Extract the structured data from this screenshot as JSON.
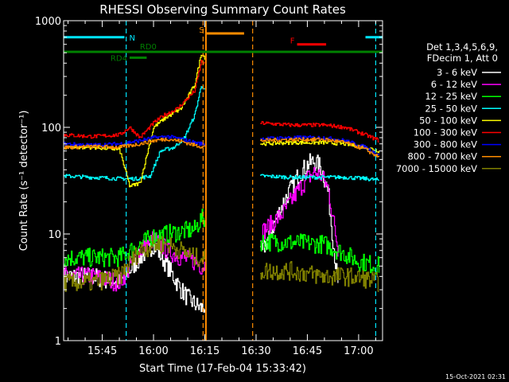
{
  "chart_data": {
    "type": "line",
    "title": "RHESSI Observing Summary Count Rates",
    "xlabel": "Start Time (17-Feb-04 15:33:42)",
    "ylabel": "Count Rate (s⁻¹ detector⁻¹)",
    "y_scale": "log",
    "ylim": [
      1,
      1000
    ],
    "xlim": [
      "15:33:42",
      "17:07:00"
    ],
    "x_ticks": [
      "15:45",
      "16:00",
      "16:15",
      "16:30",
      "16:45",
      "17:00"
    ],
    "y_ticks": [
      "1",
      "10",
      "100",
      "1000"
    ],
    "legend_header": [
      "Det 1,3,4,5,6,9,",
      "FDecim 1, Att 0"
    ],
    "legend_position": "right",
    "footer": "15-Oct-2021 02:31",
    "flags": [
      {
        "label": "N",
        "color": "#00e5ff",
        "y": 700,
        "segments": [
          [
            "15:33:42",
            "15:51:30"
          ],
          [
            "17:02:00",
            "17:07:00"
          ]
        ]
      },
      {
        "label": "S",
        "color": "#ff8c00",
        "y": 760,
        "segments": [
          [
            "16:15:30",
            "16:26:30"
          ]
        ]
      },
      {
        "label": "F",
        "color": "#ff0000",
        "y": 600,
        "segments": [
          [
            "16:42:00",
            "16:50:30"
          ]
        ]
      },
      {
        "label": "RD0",
        "color": "#008000",
        "y": 510,
        "segments": [
          [
            "15:33:42",
            "17:07:00"
          ]
        ]
      },
      {
        "label": "RD4",
        "color": "#008000",
        "y": 450,
        "segments": [
          [
            "15:53:00",
            "15:58:00"
          ]
        ]
      }
    ],
    "night_markers": [
      "15:52:00",
      "17:05:00"
    ],
    "saa_markers": [
      "16:14:30",
      "16:29:00"
    ],
    "attenuator_markers": [
      {
        "x": "16:15:20",
        "color": "#ff8c00"
      }
    ],
    "gap": [
      "16:15:00",
      "16:31:00"
    ],
    "series": [
      {
        "name": "3 - 6 keV",
        "color": "#ffffff",
        "x": [
          "15:33:42",
          "15:42",
          "15:50",
          "15:56",
          "16:00",
          "16:04",
          "16:08",
          "16:10",
          "16:12",
          "16:14",
          "16:31",
          "16:34",
          "16:38",
          "16:42",
          "16:45",
          "16:47",
          "16:49",
          "16:51",
          "16:54"
        ],
        "y": [
          4,
          4,
          3.5,
          6,
          8,
          5,
          3,
          2.5,
          2.2,
          2,
          6,
          10,
          20,
          34,
          45,
          48,
          42,
          25,
          3
        ]
      },
      {
        "name": "6 - 12 keV",
        "color": "#ff00ff",
        "x": [
          "15:33:42",
          "15:42",
          "15:50",
          "15:56",
          "16:00",
          "16:04",
          "16:08",
          "16:12",
          "16:14",
          "16:31",
          "16:34",
          "16:38",
          "16:42",
          "16:45",
          "16:47",
          "16:49",
          "16:51",
          "16:54"
        ],
        "y": [
          4,
          4,
          3.5,
          7,
          9,
          7,
          6,
          5.5,
          5,
          10,
          12,
          16,
          25,
          33,
          38,
          35,
          27,
          7
        ]
      },
      {
        "name": "12 - 25 keV",
        "color": "#00ff00",
        "x": [
          "15:33:42",
          "15:42",
          "15:50",
          "15:56",
          "16:00",
          "16:04",
          "16:08",
          "16:12",
          "16:14",
          "16:31",
          "16:40",
          "16:50",
          "16:56",
          "17:00",
          "17:06"
        ],
        "y": [
          6,
          6,
          6,
          8,
          9.5,
          10,
          10.5,
          11,
          14,
          8.5,
          8.3,
          8,
          6.5,
          5.5,
          5
        ]
      },
      {
        "name": "25 - 50 keV",
        "color": "#00ffff",
        "x": [
          "15:33:42",
          "15:42",
          "15:50",
          "15:55",
          "15:59",
          "16:02",
          "16:06",
          "16:09",
          "16:12",
          "16:14",
          "16:31",
          "16:40",
          "16:50",
          "16:56",
          "17:02",
          "17:06"
        ],
        "y": [
          35,
          34,
          33,
          33,
          35,
          60,
          65,
          80,
          130,
          250,
          35,
          34,
          34,
          34,
          33,
          32
        ]
      },
      {
        "name": "50 - 100 keV",
        "color": "#ffff00",
        "x": [
          "15:33:42",
          "15:42",
          "15:50",
          "15:53",
          "15:56",
          "16:00",
          "16:03",
          "16:08",
          "16:12",
          "16:14",
          "16:31",
          "16:40",
          "16:50",
          "16:56",
          "17:02",
          "17:06"
        ],
        "y": [
          65,
          65,
          62,
          28,
          30,
          100,
          120,
          150,
          250,
          500,
          70,
          72,
          72,
          70,
          65,
          60
        ]
      },
      {
        "name": "100 - 300 keV",
        "color": "#ff0000",
        "x": [
          "15:33:42",
          "15:42",
          "15:50",
          "15:53",
          "15:56",
          "16:00",
          "16:03",
          "16:07",
          "16:12",
          "16:14",
          "16:31",
          "16:40",
          "16:50",
          "16:56",
          "17:02",
          "17:06"
        ],
        "y": [
          85,
          82,
          85,
          100,
          80,
          110,
          130,
          150,
          220,
          420,
          110,
          105,
          105,
          100,
          85,
          75
        ]
      },
      {
        "name": "300 - 800 keV",
        "color": "#0000ff",
        "x": [
          "15:33:42",
          "15:42",
          "15:50",
          "15:56",
          "16:00",
          "16:04",
          "16:08",
          "16:12",
          "16:14",
          "16:31",
          "16:40",
          "16:50",
          "16:56",
          "17:02",
          "17:06"
        ],
        "y": [
          70,
          68,
          70,
          75,
          80,
          82,
          78,
          72,
          70,
          78,
          80,
          80,
          75,
          65,
          55
        ]
      },
      {
        "name": "800 - 7000 keV",
        "color": "#ff8c00",
        "x": [
          "15:33:42",
          "15:42",
          "15:50",
          "15:56",
          "16:00",
          "16:04",
          "16:08",
          "16:12",
          "16:14",
          "16:31",
          "16:40",
          "16:50",
          "16:56",
          "17:02",
          "17:06"
        ],
        "y": [
          65,
          66,
          65,
          70,
          75,
          78,
          74,
          68,
          66,
          75,
          77,
          77,
          72,
          62,
          52
        ]
      },
      {
        "name": "7000 - 15000 keV",
        "color": "#808000",
        "x": [
          "15:33:42",
          "15:42",
          "15:50",
          "15:56",
          "16:00",
          "16:04",
          "16:08",
          "16:12",
          "16:14",
          "16:31",
          "16:40",
          "16:50",
          "16:56",
          "17:02",
          "17:06"
        ],
        "y": [
          3.5,
          3.5,
          4,
          7,
          8,
          8,
          7,
          6,
          6,
          4.5,
          4.5,
          4,
          4,
          3.8,
          3.5
        ]
      }
    ]
  }
}
